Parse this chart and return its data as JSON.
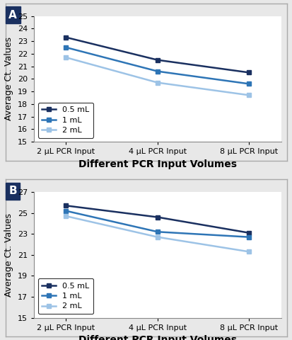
{
  "panel_A": {
    "label": "A",
    "series": [
      {
        "name": "0.5 mL",
        "color": "#1a3060",
        "values": [
          23.3,
          21.5,
          20.5
        ]
      },
      {
        "name": "1 mL",
        "color": "#2e75b6",
        "values": [
          22.5,
          20.6,
          19.6
        ]
      },
      {
        "name": "2 mL",
        "color": "#9dc3e6",
        "values": [
          21.7,
          19.7,
          18.7
        ]
      }
    ],
    "ylim": [
      15,
      25
    ],
    "yticks": [
      15,
      16,
      17,
      18,
      19,
      20,
      21,
      22,
      23,
      24,
      25
    ],
    "ylabel": "Average Ct. Values",
    "xlabel": "Different PCR Input Volumes"
  },
  "panel_B": {
    "label": "B",
    "series": [
      {
        "name": "0.5 mL",
        "color": "#1a3060",
        "values": [
          25.7,
          24.6,
          23.1
        ]
      },
      {
        "name": "1 mL",
        "color": "#2e75b6",
        "values": [
          25.2,
          23.2,
          22.7
        ]
      },
      {
        "name": "2 mL",
        "color": "#9dc3e6",
        "values": [
          24.7,
          22.7,
          21.3
        ]
      }
    ],
    "ylim": [
      15,
      27
    ],
    "yticks": [
      15,
      17,
      19,
      21,
      23,
      25,
      27
    ],
    "ylabel": "Average Ct. Values",
    "xlabel": "Different PCR Input Volumes"
  },
  "x_labels": [
    "2 μL PCR Input",
    "4 μL PCR Input",
    "8 μL PCR Input"
  ],
  "x_positions": [
    0,
    1,
    2
  ],
  "marker": "s",
  "markersize": 5,
  "linewidth": 1.8,
  "figure_bg": "#e8e8e8",
  "panel_bg": "#ffffff",
  "panel_border_color": "#cccccc",
  "tick_fontsize": 8,
  "xlabel_fontsize": 10,
  "ylabel_fontsize": 9,
  "legend_fontsize": 8,
  "panel_label_fontsize": 11,
  "panel_label_bg": "#1a3060",
  "panel_label_color": "#ffffff"
}
